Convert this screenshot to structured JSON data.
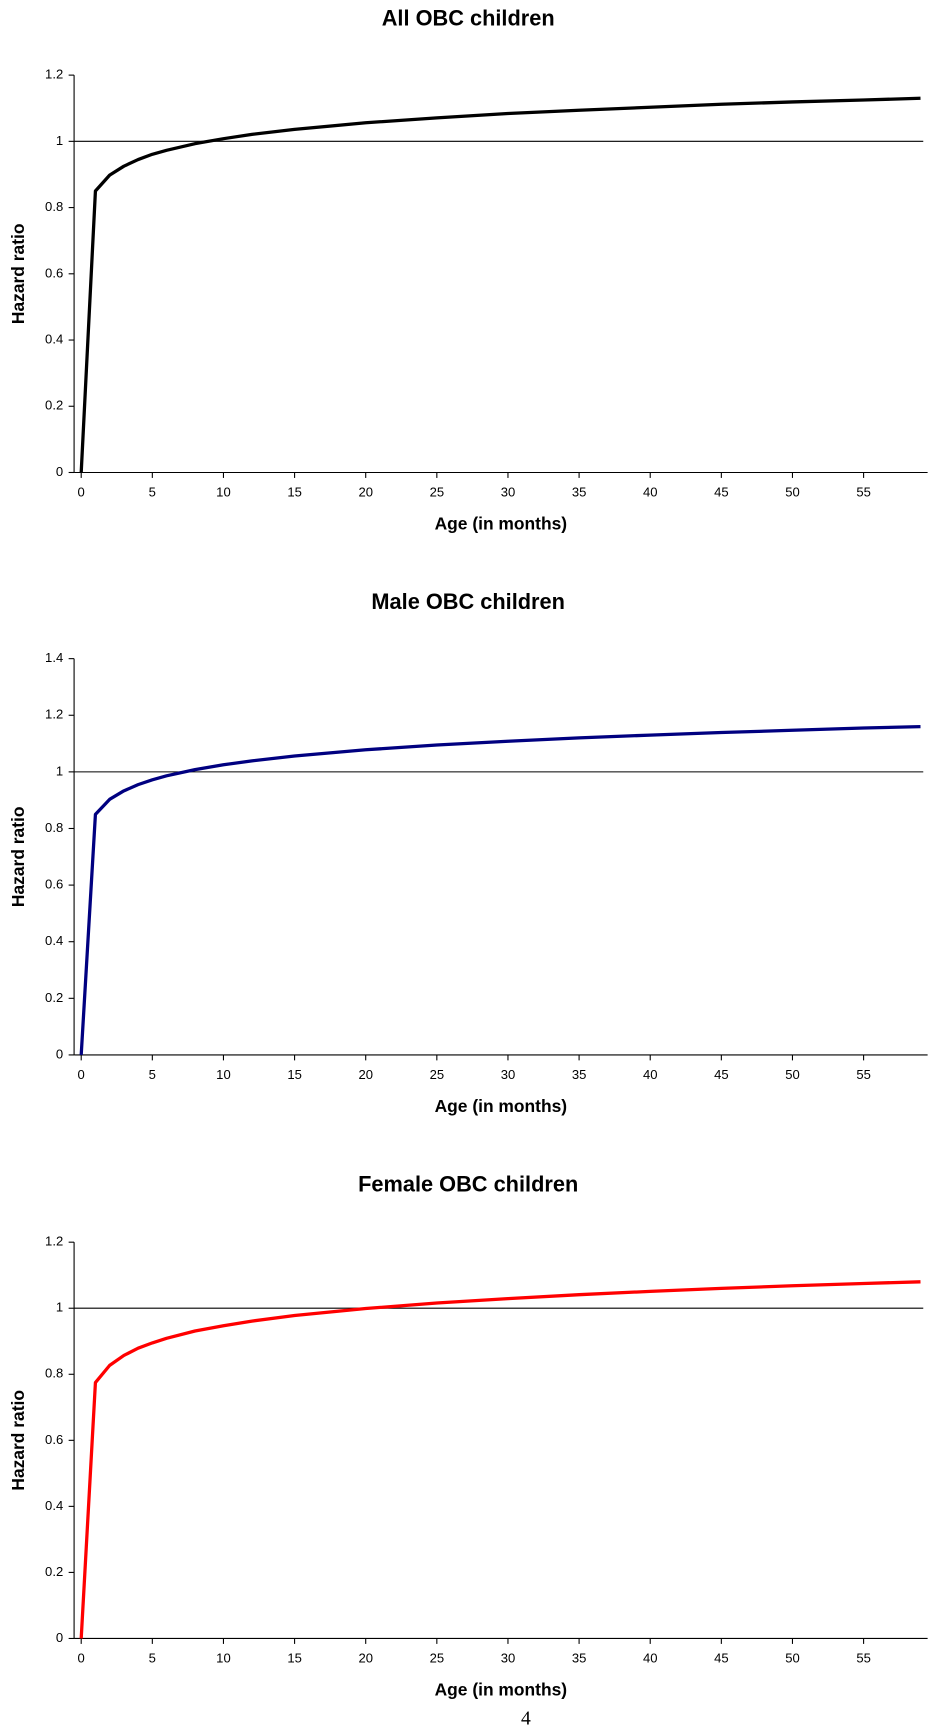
{
  "chart_data": [
    {
      "type": "line",
      "title": "All OBC children",
      "xlabel": "Age (in months)",
      "ylabel": "Hazard ratio",
      "x": [
        0,
        1,
        2,
        3,
        4,
        5,
        6,
        8,
        10,
        12,
        15,
        20,
        25,
        30,
        35,
        40,
        45,
        50,
        55,
        59
      ],
      "series": [
        {
          "name": "All OBC children",
          "color": "#000000",
          "values": [
            0,
            0.85,
            0.898,
            0.925,
            0.945,
            0.961,
            0.973,
            0.993,
            1.008,
            1.021,
            1.036,
            1.056,
            1.071,
            1.084,
            1.094,
            1.103,
            1.112,
            1.119,
            1.125,
            1.13
          ]
        }
      ],
      "xlim": [
        -0.5,
        59.5
      ],
      "xticks": [
        0,
        5,
        10,
        15,
        20,
        25,
        30,
        35,
        40,
        45,
        50,
        55
      ],
      "ylim": [
        0,
        1.2
      ],
      "yticks": [
        0,
        0.2,
        0.4,
        0.6,
        0.8,
        1,
        1.2
      ],
      "reference_line": 1
    },
    {
      "type": "line",
      "title": "Male OBC children",
      "xlabel": "Age (in months)",
      "ylabel": "Hazard ratio",
      "x": [
        0,
        1,
        2,
        3,
        4,
        5,
        6,
        8,
        10,
        12,
        15,
        20,
        25,
        30,
        35,
        40,
        45,
        50,
        55,
        59
      ],
      "series": [
        {
          "name": "Male OBC children",
          "color": "#000080",
          "values": [
            0,
            0.85,
            0.903,
            0.933,
            0.955,
            0.972,
            0.986,
            1.008,
            1.025,
            1.039,
            1.056,
            1.078,
            1.095,
            1.108,
            1.12,
            1.13,
            1.139,
            1.147,
            1.155,
            1.16
          ]
        }
      ],
      "xlim": [
        -0.5,
        59.5
      ],
      "xticks": [
        0,
        5,
        10,
        15,
        20,
        25,
        30,
        35,
        40,
        45,
        50,
        55
      ],
      "ylim": [
        0,
        1.4
      ],
      "yticks": [
        0,
        0.2,
        0.4,
        0.6,
        0.8,
        1,
        1.2,
        1.4
      ],
      "reference_line": 1
    },
    {
      "type": "line",
      "title": "Female OBC children",
      "xlabel": "Age (in months)",
      "ylabel": "Hazard ratio",
      "x": [
        0,
        1,
        2,
        3,
        4,
        5,
        6,
        8,
        10,
        12,
        15,
        20,
        25,
        30,
        35,
        40,
        45,
        50,
        55,
        59
      ],
      "series": [
        {
          "name": "Female OBC children",
          "color": "#ff0000",
          "values": [
            0,
            0.775,
            0.827,
            0.857,
            0.879,
            0.895,
            0.909,
            0.931,
            0.947,
            0.961,
            0.978,
            0.999,
            1.016,
            1.029,
            1.041,
            1.051,
            1.06,
            1.068,
            1.075,
            1.08
          ]
        }
      ],
      "xlim": [
        -0.5,
        59.5
      ],
      "xticks": [
        0,
        5,
        10,
        15,
        20,
        25,
        30,
        35,
        40,
        45,
        50,
        55
      ],
      "ylim": [
        0,
        1.2
      ],
      "yticks": [
        0,
        0.2,
        0.4,
        0.6,
        0.8,
        1,
        1.2
      ],
      "reference_line": 1
    }
  ],
  "page_number": "4"
}
